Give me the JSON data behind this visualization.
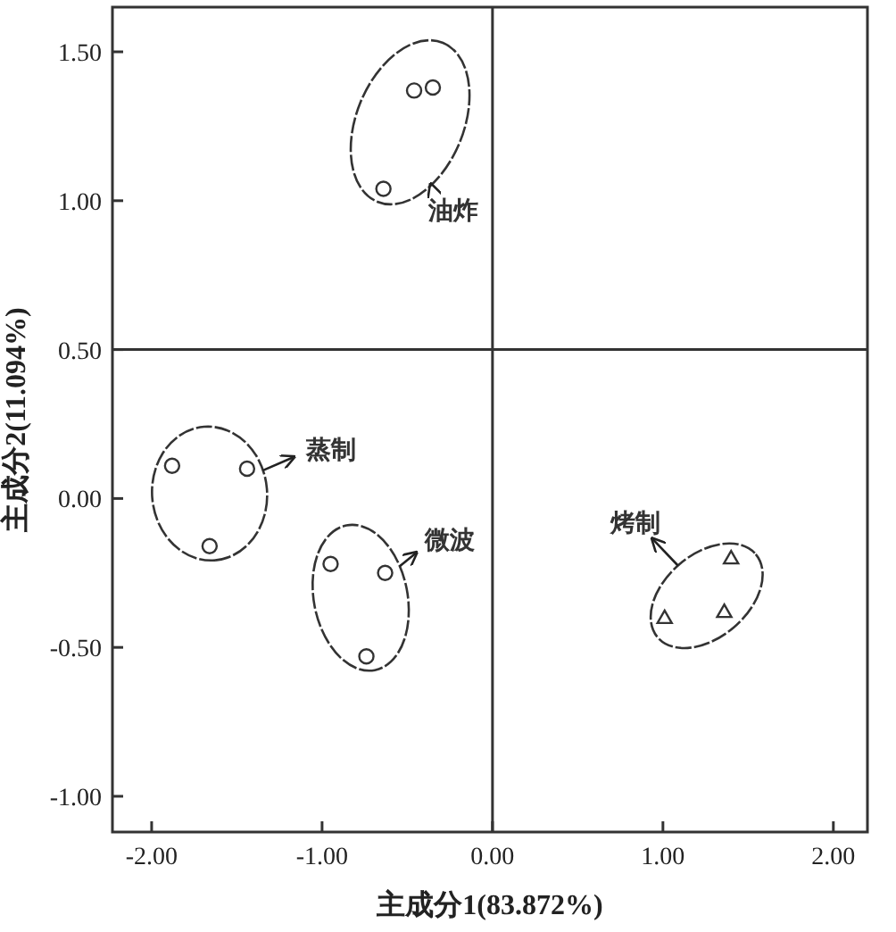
{
  "chart_data": {
    "type": "scatter",
    "xlabel": "主成分1(83.872%)",
    "ylabel": "主成分2(11.094%)",
    "xlim": [
      -2.23,
      2.2
    ],
    "ylim": [
      -1.12,
      1.65
    ],
    "xticks": [
      {
        "value": -2,
        "label": "-2.00"
      },
      {
        "value": -1,
        "label": "-1.00"
      },
      {
        "value": 0,
        "label": "0.00"
      },
      {
        "value": 1,
        "label": "1.00"
      },
      {
        "value": 2,
        "label": "2.00"
      }
    ],
    "yticks": [
      {
        "value": -1,
        "label": "-1.00"
      },
      {
        "value": -0.5,
        "label": "-0.50"
      },
      {
        "value": 0,
        "label": "0.00"
      },
      {
        "value": 0.5,
        "label": "0.50"
      },
      {
        "value": 1,
        "label": "1.00"
      },
      {
        "value": 1.5,
        "label": "1.50"
      }
    ],
    "ref_lines": [
      {
        "axis": "x",
        "value": 0,
        "color": "#333333"
      },
      {
        "axis": "y",
        "value": 0.5,
        "color": "#333333"
      }
    ],
    "grid": false,
    "series": [
      {
        "name": "油炸",
        "color": "#333333",
        "marker": "circle",
        "x": [
          -0.46,
          -0.35,
          -0.64
        ],
        "values": [
          1.37,
          1.38,
          1.04
        ]
      },
      {
        "name": "蒸制",
        "color": "#333333",
        "marker": "circle",
        "x": [
          -1.88,
          -1.44,
          -1.66
        ],
        "values": [
          0.11,
          0.1,
          -0.16
        ]
      },
      {
        "name": "微波",
        "color": "#333333",
        "marker": "circle",
        "x": [
          -0.95,
          -0.63,
          -0.74
        ],
        "values": [
          -0.22,
          -0.25,
          -0.53
        ]
      },
      {
        "name": "烤制",
        "color": "#333333",
        "marker": "triangle",
        "x": [
          1.4,
          1.36,
          1.01
        ],
        "values": [
          -0.2,
          -0.38,
          -0.4
        ]
      }
    ]
  }
}
